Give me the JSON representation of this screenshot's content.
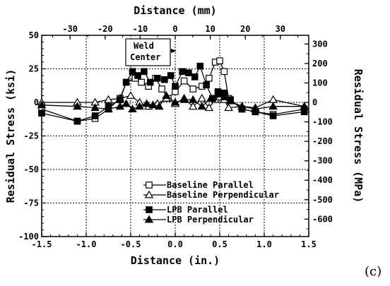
{
  "chart_data": {
    "type": "line",
    "xlabel_bottom": "Distance (in.)",
    "xlabel_top": "Distance (mm)",
    "ylabel_left": "Residual Stress (ksi)",
    "ylabel_right": "Residual Stress (MPa)",
    "xlim": [
      -1.5,
      1.5
    ],
    "ylim": [
      -100,
      50
    ],
    "x_ticks_bottom": [
      -1.5,
      -1.0,
      -0.5,
      0.0,
      0.5,
      1.0,
      1.5
    ],
    "x_tick_labels_bottom": [
      "-1.5",
      "-1.0",
      "-0.5",
      "0.0",
      "0.5",
      "1.0",
      "1.5"
    ],
    "x_ticks_top_mm": [
      -30,
      -20,
      -10,
      0,
      10,
      20,
      30
    ],
    "x_tick_labels_top": [
      "-30",
      "-20",
      "-10",
      "0",
      "10",
      "20",
      "30"
    ],
    "y_ticks_left": [
      50,
      25,
      0,
      -25,
      -50,
      -75,
      -100
    ],
    "y_tick_labels_left": [
      "50",
      "25",
      "0",
      "-25",
      "-50",
      "-75",
      "-100"
    ],
    "y_ticks_right_mpa": [
      300,
      200,
      100,
      0,
      -100,
      -200,
      -300,
      -400,
      -500,
      -600
    ],
    "y_tick_labels_right": [
      "300",
      "200",
      "100",
      "0",
      "-100",
      "-200",
      "-300",
      "-400",
      "-500",
      "-600"
    ],
    "grid": "dotted at major ticks",
    "legend_position": "lower-center",
    "annotation": {
      "text_lines": [
        "Weld",
        "Center"
      ],
      "points_to_x": 0.0
    },
    "series": [
      {
        "name": "Baseline Parallel",
        "marker": "open-square",
        "x": [
          -1.5,
          -1.1,
          -0.9,
          -0.75,
          -0.62,
          -0.55,
          -0.45,
          -0.38,
          -0.3,
          -0.22,
          -0.15,
          -0.08,
          0.0,
          0.1,
          0.2,
          0.3,
          0.38,
          0.45,
          0.5,
          0.55,
          0.6,
          0.75,
          0.9,
          1.1,
          1.45
        ],
        "y": [
          -5,
          -14,
          -12,
          -5,
          3,
          15,
          18,
          15,
          12,
          18,
          10,
          3,
          8,
          16,
          10,
          12,
          18,
          30,
          31,
          23,
          3,
          -5,
          -7,
          -9,
          -5
        ]
      },
      {
        "name": "Baseline Perpendicular",
        "marker": "open-triangle",
        "x": [
          -1.5,
          -1.1,
          -0.9,
          -0.75,
          -0.62,
          -0.5,
          -0.4,
          -0.3,
          -0.2,
          -0.1,
          0.0,
          0.1,
          0.2,
          0.3,
          0.38,
          0.45,
          0.5,
          0.55,
          0.6,
          0.75,
          0.9,
          1.1,
          1.45
        ],
        "y": [
          0,
          0,
          0,
          2,
          3,
          5,
          0,
          -3,
          -1,
          3,
          -1,
          3,
          -3,
          3,
          -4,
          2,
          4,
          2,
          -4,
          -3,
          -4,
          2,
          -3
        ]
      },
      {
        "name": "LPB Parallel",
        "marker": "filled-square",
        "x": [
          -1.5,
          -1.1,
          -0.9,
          -0.75,
          -0.62,
          -0.55,
          -0.48,
          -0.42,
          -0.35,
          -0.28,
          -0.2,
          -0.12,
          -0.05,
          0.0,
          0.08,
          0.15,
          0.22,
          0.28,
          0.35,
          0.42,
          0.48,
          0.55,
          0.62,
          0.75,
          0.9,
          1.1,
          1.45
        ],
        "y": [
          -8,
          -14,
          -10,
          -3,
          2,
          15,
          23,
          20,
          23,
          15,
          18,
          17,
          20,
          12,
          23,
          22,
          19,
          27,
          13,
          3,
          8,
          7,
          2,
          -5,
          -7,
          -10,
          -7
        ]
      },
      {
        "name": "LPB Perpendicular",
        "marker": "filled-triangle",
        "x": [
          -1.5,
          -1.1,
          -0.9,
          -0.75,
          -0.62,
          -0.55,
          -0.48,
          -0.4,
          -0.32,
          -0.25,
          -0.18,
          -0.1,
          0.0,
          0.1,
          0.2,
          0.3,
          0.4,
          0.48,
          0.55,
          0.62,
          0.75,
          0.9,
          1.1,
          1.45
        ],
        "y": [
          -2,
          -3,
          -4,
          -5,
          -3,
          -1,
          -5,
          -3,
          -1,
          -2,
          -3,
          5,
          0,
          2,
          2,
          -3,
          3,
          6,
          4,
          1,
          -3,
          -5,
          -3,
          -3
        ]
      }
    ]
  },
  "figure": {
    "panel_label": "(c)"
  }
}
